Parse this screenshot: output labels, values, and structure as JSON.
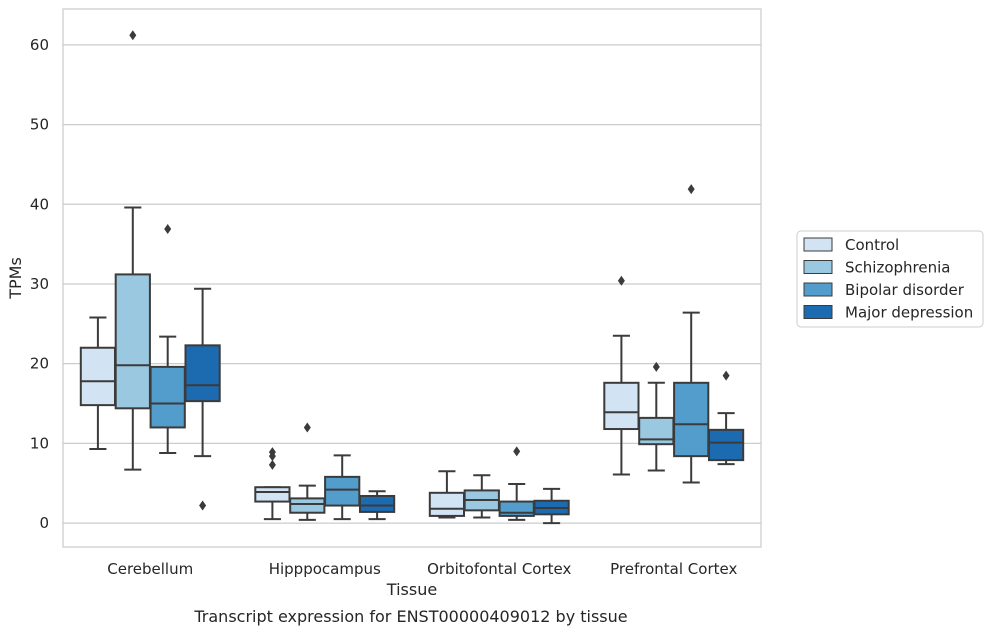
{
  "caption": "Transcript expression for ENST00000409012 by tissue",
  "chart_data": {
    "type": "box",
    "xlabel": "Tissue",
    "ylabel": "TPMs",
    "ylim": [
      -3,
      64.5
    ],
    "yticks": [
      0,
      10,
      20,
      30,
      40,
      50,
      60
    ],
    "grid": true,
    "legend_position": "right",
    "categories": [
      "Cerebellum",
      "Hipppocampus",
      "Orbitofontal Cortex",
      "Prefrontal Cortex"
    ],
    "series": [
      {
        "name": "Control",
        "color": "#d2e3f3",
        "boxes": [
          {
            "q1": 14.8,
            "median": 17.8,
            "q3": 22.0,
            "whisker_low": 9.3,
            "whisker_high": 25.8,
            "outliers": []
          },
          {
            "q1": 2.7,
            "median": 3.9,
            "q3": 4.5,
            "whisker_low": 0.5,
            "whisker_high": 4.5,
            "outliers": [
              7.3,
              8.4,
              8.9
            ]
          },
          {
            "q1": 0.9,
            "median": 1.8,
            "q3": 3.8,
            "whisker_low": 0.7,
            "whisker_high": 6.5,
            "outliers": []
          },
          {
            "q1": 11.8,
            "median": 13.9,
            "q3": 17.6,
            "whisker_low": 6.1,
            "whisker_high": 23.5,
            "outliers": [
              30.4
            ]
          }
        ]
      },
      {
        "name": "Schizophrenia",
        "color": "#9ac8e0",
        "boxes": [
          {
            "q1": 14.4,
            "median": 19.8,
            "q3": 31.2,
            "whisker_low": 6.7,
            "whisker_high": 39.6,
            "outliers": [
              61.2
            ]
          },
          {
            "q1": 1.3,
            "median": 2.4,
            "q3": 3.1,
            "whisker_low": 0.4,
            "whisker_high": 4.7,
            "outliers": [
              12.0
            ]
          },
          {
            "q1": 1.6,
            "median": 2.9,
            "q3": 4.1,
            "whisker_low": 0.7,
            "whisker_high": 6.0,
            "outliers": []
          },
          {
            "q1": 9.9,
            "median": 10.5,
            "q3": 13.2,
            "whisker_low": 6.6,
            "whisker_high": 17.6,
            "outliers": [
              19.6
            ]
          }
        ]
      },
      {
        "name": "Bipolar disorder",
        "color": "#529dcc",
        "boxes": [
          {
            "q1": 12.0,
            "median": 15.0,
            "q3": 19.6,
            "whisker_low": 8.8,
            "whisker_high": 23.4,
            "outliers": [
              36.9
            ]
          },
          {
            "q1": 2.2,
            "median": 4.2,
            "q3": 5.8,
            "whisker_low": 0.5,
            "whisker_high": 8.5,
            "outliers": []
          },
          {
            "q1": 0.9,
            "median": 1.3,
            "q3": 2.7,
            "whisker_low": 0.4,
            "whisker_high": 4.9,
            "outliers": [
              9.0
            ]
          },
          {
            "q1": 8.4,
            "median": 12.4,
            "q3": 17.6,
            "whisker_low": 5.1,
            "whisker_high": 26.4,
            "outliers": [
              41.9
            ]
          }
        ]
      },
      {
        "name": "Major depression",
        "color": "#1c6aaf",
        "boxes": [
          {
            "q1": 15.3,
            "median": 17.3,
            "q3": 22.3,
            "whisker_low": 8.4,
            "whisker_high": 29.4,
            "outliers": [
              2.2
            ]
          },
          {
            "q1": 1.4,
            "median": 2.2,
            "q3": 3.4,
            "whisker_low": 0.5,
            "whisker_high": 4.0,
            "outliers": []
          },
          {
            "q1": 1.1,
            "median": 1.9,
            "q3": 2.8,
            "whisker_low": 0.0,
            "whisker_high": 4.3,
            "outliers": []
          },
          {
            "q1": 7.9,
            "median": 10.1,
            "q3": 11.7,
            "whisker_low": 7.4,
            "whisker_high": 13.8,
            "outliers": [
              18.5
            ]
          }
        ]
      }
    ]
  }
}
